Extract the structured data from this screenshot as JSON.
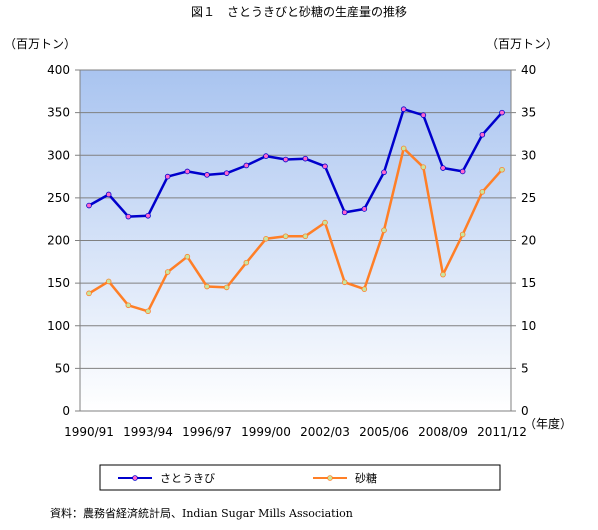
{
  "chart_data": {
    "type": "line",
    "title": "図１　さとうきびと砂糖の生産量の推移",
    "left_axis_unit": "（百万トン）",
    "right_axis_unit": "（百万トン）",
    "x_unit": "（年度）",
    "categories": [
      "1990/91",
      "1991/92",
      "1992/93",
      "1993/94",
      "1994/95",
      "1995/96",
      "1996/97",
      "1997/98",
      "1998/99",
      "1999/00",
      "2000/01",
      "2001/02",
      "2002/03",
      "2003/04",
      "2004/05",
      "2005/06",
      "2006/07",
      "2007/08",
      "2008/09",
      "2009/10",
      "2010/11",
      "2011/12"
    ],
    "x_tick_labels": [
      "1990/91",
      "1993/94",
      "1996/97",
      "1999/00",
      "2002/03",
      "2005/06",
      "2008/09",
      "2011/12"
    ],
    "x_tick_indices": [
      0,
      3,
      6,
      9,
      12,
      15,
      18,
      21
    ],
    "ylim_left": [
      0,
      400
    ],
    "ylim_right": [
      0,
      40
    ],
    "yticks_left": [
      "0",
      "50",
      "100",
      "150",
      "200",
      "250",
      "300",
      "350",
      "400"
    ],
    "yticks_right": [
      "0",
      "5",
      "10",
      "15",
      "20",
      "25",
      "30",
      "35",
      "40"
    ],
    "grid": true,
    "legend_position": "bottom",
    "series": [
      {
        "name": "さとうきび",
        "axis": "left",
        "color": "#0000cc",
        "marker_color": "#ff66cc",
        "values": [
          241,
          254,
          228,
          229,
          275,
          281,
          277,
          279,
          288,
          299,
          295,
          296,
          287,
          233,
          237,
          280,
          354,
          347,
          285,
          281,
          324,
          350
        ]
      },
      {
        "name": "砂糖",
        "axis": "right",
        "color": "#ff7f27",
        "marker_color": "#c8e6a0",
        "values": [
          13.8,
          15.2,
          12.4,
          11.7,
          16.3,
          18.1,
          14.6,
          14.5,
          17.4,
          20.2,
          20.5,
          20.5,
          22.1,
          15.1,
          14.3,
          21.2,
          30.8,
          28.6,
          16.0,
          20.7,
          25.7,
          28.3
        ]
      }
    ]
  },
  "source_note": "資料：農務省経済統計局、Indian Sugar Mills Association"
}
